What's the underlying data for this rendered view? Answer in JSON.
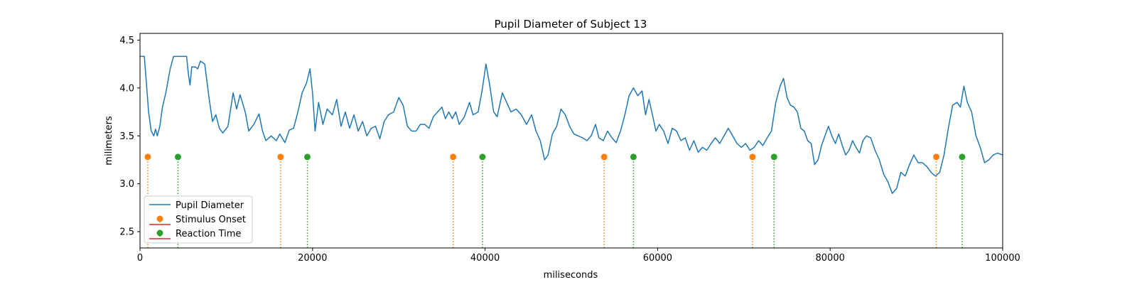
{
  "chart_data": {
    "type": "line",
    "title": "Pupil Diameter of Subject 13",
    "xlabel": "miliseconds",
    "ylabel": "milimeters",
    "xlim": [
      0,
      100000
    ],
    "ylim": [
      2.33,
      4.57
    ],
    "x_ticks": [
      0,
      20000,
      40000,
      60000,
      80000,
      100000
    ],
    "y_ticks": [
      2.5,
      3.0,
      3.5,
      4.0,
      4.5
    ],
    "grid": false,
    "legend_position": "lower-left",
    "series": [
      {
        "name": "Pupil Diameter",
        "kind": "line",
        "color": "#1f77b4",
        "points": [
          [
            0,
            4.33
          ],
          [
            500,
            4.33
          ],
          [
            700,
            4.1
          ],
          [
            1000,
            3.75
          ],
          [
            1300,
            3.55
          ],
          [
            1600,
            3.5
          ],
          [
            1800,
            3.57
          ],
          [
            2000,
            3.5
          ],
          [
            2300,
            3.6
          ],
          [
            2600,
            3.8
          ],
          [
            3000,
            3.95
          ],
          [
            3500,
            4.2
          ],
          [
            3900,
            4.33
          ],
          [
            5000,
            4.33
          ],
          [
            5400,
            4.33
          ],
          [
            5600,
            4.15
          ],
          [
            5800,
            4.03
          ],
          [
            6000,
            4.22
          ],
          [
            6400,
            4.22
          ],
          [
            6700,
            4.2
          ],
          [
            7000,
            4.28
          ],
          [
            7500,
            4.25
          ],
          [
            8000,
            3.9
          ],
          [
            8400,
            3.65
          ],
          [
            8800,
            3.72
          ],
          [
            9200,
            3.58
          ],
          [
            9600,
            3.53
          ],
          [
            10200,
            3.6
          ],
          [
            10800,
            3.95
          ],
          [
            11200,
            3.78
          ],
          [
            11600,
            3.93
          ],
          [
            12200,
            3.75
          ],
          [
            12600,
            3.55
          ],
          [
            13200,
            3.62
          ],
          [
            13800,
            3.73
          ],
          [
            14200,
            3.55
          ],
          [
            14600,
            3.45
          ],
          [
            15200,
            3.5
          ],
          [
            15800,
            3.45
          ],
          [
            16200,
            3.52
          ],
          [
            16800,
            3.43
          ],
          [
            17300,
            3.56
          ],
          [
            17800,
            3.58
          ],
          [
            18300,
            3.75
          ],
          [
            18800,
            3.95
          ],
          [
            19300,
            4.05
          ],
          [
            19700,
            4.2
          ],
          [
            20000,
            3.95
          ],
          [
            20300,
            3.55
          ],
          [
            20700,
            3.85
          ],
          [
            21200,
            3.62
          ],
          [
            21700,
            3.78
          ],
          [
            22300,
            3.72
          ],
          [
            22800,
            3.88
          ],
          [
            23300,
            3.6
          ],
          [
            23800,
            3.75
          ],
          [
            24300,
            3.58
          ],
          [
            24800,
            3.72
          ],
          [
            25300,
            3.55
          ],
          [
            25800,
            3.65
          ],
          [
            26300,
            3.5
          ],
          [
            26800,
            3.58
          ],
          [
            27300,
            3.6
          ],
          [
            27800,
            3.47
          ],
          [
            28300,
            3.65
          ],
          [
            28800,
            3.72
          ],
          [
            29400,
            3.75
          ],
          [
            30000,
            3.9
          ],
          [
            30500,
            3.82
          ],
          [
            31000,
            3.6
          ],
          [
            31500,
            3.55
          ],
          [
            32000,
            3.55
          ],
          [
            32500,
            3.62
          ],
          [
            33000,
            3.62
          ],
          [
            33500,
            3.58
          ],
          [
            34000,
            3.7
          ],
          [
            34500,
            3.75
          ],
          [
            35000,
            3.8
          ],
          [
            35400,
            3.68
          ],
          [
            35800,
            3.75
          ],
          [
            36200,
            3.68
          ],
          [
            36600,
            3.75
          ],
          [
            37000,
            3.62
          ],
          [
            37600,
            3.7
          ],
          [
            38200,
            3.85
          ],
          [
            38600,
            3.72
          ],
          [
            39200,
            3.75
          ],
          [
            39700,
            4.0
          ],
          [
            40100,
            4.25
          ],
          [
            40500,
            4.05
          ],
          [
            41000,
            3.75
          ],
          [
            41400,
            3.7
          ],
          [
            42000,
            3.95
          ],
          [
            42500,
            3.85
          ],
          [
            43000,
            3.75
          ],
          [
            43600,
            3.78
          ],
          [
            44200,
            3.72
          ],
          [
            44800,
            3.62
          ],
          [
            45400,
            3.72
          ],
          [
            45900,
            3.55
          ],
          [
            46400,
            3.45
          ],
          [
            46900,
            3.25
          ],
          [
            47300,
            3.3
          ],
          [
            47800,
            3.52
          ],
          [
            48300,
            3.6
          ],
          [
            48800,
            3.78
          ],
          [
            49300,
            3.72
          ],
          [
            49800,
            3.6
          ],
          [
            50300,
            3.52
          ],
          [
            50800,
            3.5
          ],
          [
            51300,
            3.48
          ],
          [
            51800,
            3.45
          ],
          [
            52300,
            3.5
          ],
          [
            52800,
            3.62
          ],
          [
            53200,
            3.48
          ],
          [
            53700,
            3.45
          ],
          [
            54200,
            3.55
          ],
          [
            54700,
            3.48
          ],
          [
            55200,
            3.43
          ],
          [
            55700,
            3.55
          ],
          [
            56200,
            3.72
          ],
          [
            56700,
            3.92
          ],
          [
            57200,
            4.0
          ],
          [
            57700,
            3.92
          ],
          [
            58200,
            3.97
          ],
          [
            58600,
            3.72
          ],
          [
            59000,
            3.88
          ],
          [
            59400,
            3.72
          ],
          [
            59800,
            3.55
          ],
          [
            60200,
            3.62
          ],
          [
            60700,
            3.55
          ],
          [
            61200,
            3.42
          ],
          [
            61700,
            3.58
          ],
          [
            62200,
            3.55
          ],
          [
            62700,
            3.45
          ],
          [
            63200,
            3.48
          ],
          [
            63700,
            3.35
          ],
          [
            64200,
            3.45
          ],
          [
            64700,
            3.33
          ],
          [
            65200,
            3.38
          ],
          [
            65700,
            3.35
          ],
          [
            66200,
            3.42
          ],
          [
            66700,
            3.48
          ],
          [
            67200,
            3.42
          ],
          [
            67700,
            3.5
          ],
          [
            68200,
            3.58
          ],
          [
            68700,
            3.5
          ],
          [
            69200,
            3.42
          ],
          [
            69700,
            3.38
          ],
          [
            70200,
            3.42
          ],
          [
            70700,
            3.35
          ],
          [
            71200,
            3.38
          ],
          [
            71700,
            3.45
          ],
          [
            72200,
            3.4
          ],
          [
            72700,
            3.48
          ],
          [
            73200,
            3.55
          ],
          [
            73700,
            3.85
          ],
          [
            74200,
            4.02
          ],
          [
            74600,
            4.1
          ],
          [
            75000,
            3.9
          ],
          [
            75400,
            3.82
          ],
          [
            75800,
            3.8
          ],
          [
            76200,
            3.75
          ],
          [
            76600,
            3.58
          ],
          [
            77000,
            3.55
          ],
          [
            77400,
            3.45
          ],
          [
            77800,
            3.42
          ],
          [
            78200,
            3.2
          ],
          [
            78600,
            3.25
          ],
          [
            79000,
            3.4
          ],
          [
            79400,
            3.5
          ],
          [
            79800,
            3.6
          ],
          [
            80200,
            3.5
          ],
          [
            80600,
            3.42
          ],
          [
            81000,
            3.52
          ],
          [
            81400,
            3.4
          ],
          [
            81800,
            3.3
          ],
          [
            82200,
            3.35
          ],
          [
            82600,
            3.45
          ],
          [
            83000,
            3.38
          ],
          [
            83400,
            3.32
          ],
          [
            83800,
            3.45
          ],
          [
            84200,
            3.5
          ],
          [
            84700,
            3.48
          ],
          [
            85200,
            3.35
          ],
          [
            85700,
            3.25
          ],
          [
            86200,
            3.1
          ],
          [
            86700,
            3.02
          ],
          [
            87200,
            2.9
          ],
          [
            87700,
            2.95
          ],
          [
            88200,
            3.12
          ],
          [
            88700,
            3.08
          ],
          [
            89200,
            3.2
          ],
          [
            89700,
            3.3
          ],
          [
            90200,
            3.22
          ],
          [
            90700,
            3.22
          ],
          [
            91200,
            3.18
          ],
          [
            91700,
            3.12
          ],
          [
            92200,
            3.08
          ],
          [
            92700,
            3.12
          ],
          [
            93200,
            3.3
          ],
          [
            93700,
            3.58
          ],
          [
            94200,
            3.82
          ],
          [
            94700,
            3.85
          ],
          [
            95100,
            3.8
          ],
          [
            95500,
            4.02
          ],
          [
            95900,
            3.85
          ],
          [
            96400,
            3.75
          ],
          [
            96900,
            3.5
          ],
          [
            97400,
            3.38
          ],
          [
            97900,
            3.22
          ],
          [
            98400,
            3.25
          ],
          [
            98900,
            3.3
          ],
          [
            99400,
            3.32
          ],
          [
            100000,
            3.3
          ]
        ]
      },
      {
        "name": "Stimulus Onset",
        "kind": "stem",
        "color": "#ff7f0e",
        "stem_base": 2.33,
        "x": [
          900,
          16300,
          36300,
          53800,
          71000,
          92300
        ],
        "y": [
          3.28,
          3.28,
          3.28,
          3.28,
          3.28,
          3.28
        ]
      },
      {
        "name": "Reaction Time",
        "kind": "stem",
        "color": "#2ca02c",
        "stem_base": 2.33,
        "x": [
          4400,
          19400,
          39700,
          57200,
          73500,
          95300
        ],
        "y": [
          3.28,
          3.28,
          3.28,
          3.28,
          3.28,
          3.28
        ]
      }
    ]
  },
  "legend": {
    "items": [
      {
        "label": "Pupil Diameter",
        "marker": "line",
        "color": "#1f77b4"
      },
      {
        "label": "Stimulus Onset",
        "marker": "stem",
        "color": "#ff7f0e"
      },
      {
        "label": "Reaction Time",
        "marker": "stem",
        "color": "#2ca02c"
      }
    ]
  }
}
